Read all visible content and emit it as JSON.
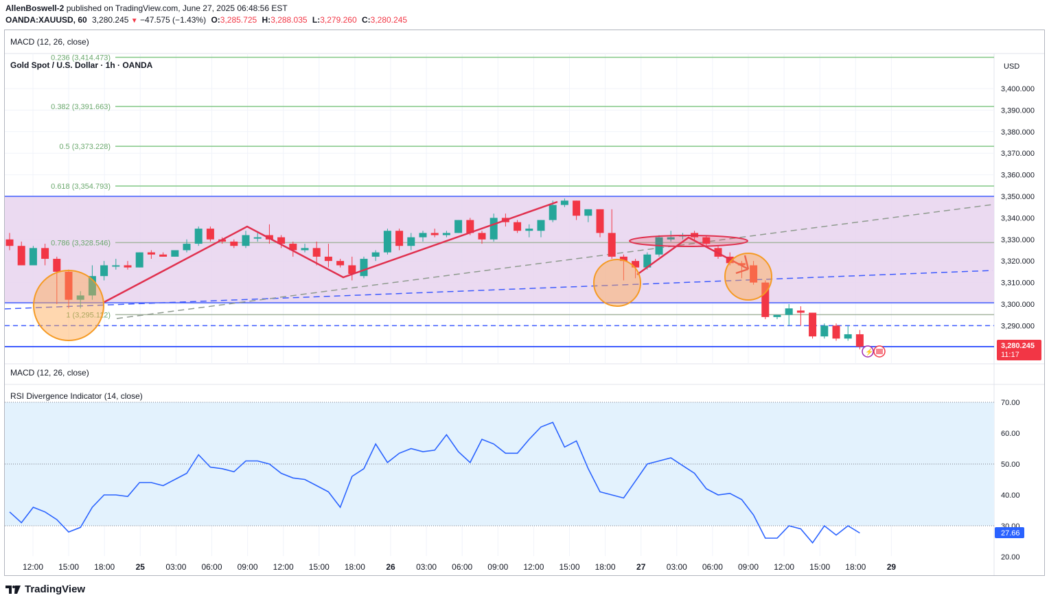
{
  "header": {
    "author": "AllenBoswell-2",
    "published_text": "published on TradingView.com, June 27, 2025 06:48:56 EST",
    "symbol": "OANDA:XAUUSD, 60",
    "price": "3,280.245",
    "change": "−47.575 (−1.43%)",
    "o_label": "O:",
    "o_value": "3,285.725",
    "h_label": "H:",
    "h_value": "3,288.035",
    "l_label": "L:",
    "l_value": "3,279.260",
    "c_label": "C:",
    "c_value": "3,280.245"
  },
  "panes": {
    "top_indicator": "MACD (12, 26, close)",
    "main_title": "Gold Spot / U.S. Dollar · 1h · OANDA",
    "currency": "USD",
    "mid_indicator": "MACD (12, 26, close)",
    "rsi_indicator": "RSI Divergence Indicator (14, close)"
  },
  "price_tag": {
    "value": "3,280.245",
    "countdown": "11:17"
  },
  "rsi_tag": "27.66",
  "footer": {
    "brand": "TradingView"
  },
  "colors": {
    "up": "#26a69a",
    "down": "#f23645",
    "zone": "#e8d3ee",
    "fib": "#81c784",
    "blue": "#3d5afe",
    "pattern": "#e0304e",
    "rsi_line": "#2962ff",
    "rsi_band": "#e3f2fd",
    "circle": "#f59a23"
  },
  "chart_data": {
    "type": "candlestick",
    "instrument": "XAUUSD",
    "timeframe": "1h",
    "x_ticks": [
      "12:00",
      "15:00",
      "18:00",
      "25",
      "03:00",
      "06:00",
      "09:00",
      "12:00",
      "15:00",
      "18:00",
      "26",
      "03:00",
      "06:00",
      "09:00",
      "12:00",
      "15:00",
      "18:00",
      "27",
      "03:00",
      "06:00",
      "09:00",
      "12:00",
      "15:00",
      "18:00",
      "29"
    ],
    "price_ticks": [
      "3,400.000",
      "3,390.000",
      "3,380.000",
      "3,370.000",
      "3,360.000",
      "3,350.000",
      "3,340.000",
      "3,330.000",
      "3,320.000",
      "3,310.000",
      "3,300.000",
      "3,290.000"
    ],
    "fib_levels": [
      {
        "label": "0.236 (3,414.473)",
        "price": 3414.473
      },
      {
        "label": "0.382 (3,391.663)",
        "price": 3391.663
      },
      {
        "label": "0.5 (3,373.228)",
        "price": 3373.228
      },
      {
        "label": "0.618 (3,354.793)",
        "price": 3354.793
      },
      {
        "label": "0.786 (3,328.546)",
        "price": 3328.546
      },
      {
        "label": "1 (3,295.112)",
        "price": 3295.112
      }
    ],
    "horizontal_levels": [
      3350.0,
      3300.6,
      3290.0,
      3280.245
    ],
    "candles": [
      {
        "o": 3330,
        "h": 3333,
        "l": 3325,
        "c": 3327
      },
      {
        "o": 3327,
        "h": 3329,
        "l": 3318,
        "c": 3318
      },
      {
        "o": 3318,
        "h": 3327,
        "l": 3318,
        "c": 3326
      },
      {
        "o": 3326,
        "h": 3328,
        "l": 3318,
        "c": 3321
      },
      {
        "o": 3321,
        "h": 3322,
        "l": 3300,
        "c": 3315
      },
      {
        "o": 3315,
        "h": 3316,
        "l": 3298,
        "c": 3302
      },
      {
        "o": 3302,
        "h": 3306,
        "l": 3298,
        "c": 3304
      },
      {
        "o": 3304,
        "h": 3318,
        "l": 3302,
        "c": 3313
      },
      {
        "o": 3313,
        "h": 3320,
        "l": 3311,
        "c": 3318
      },
      {
        "o": 3318,
        "h": 3321,
        "l": 3316,
        "c": 3318
      },
      {
        "o": 3318,
        "h": 3320,
        "l": 3316,
        "c": 3317
      },
      {
        "o": 3317,
        "h": 3324,
        "l": 3317,
        "c": 3324
      },
      {
        "o": 3324,
        "h": 3325,
        "l": 3321,
        "c": 3323
      },
      {
        "o": 3323,
        "h": 3324,
        "l": 3322,
        "c": 3322
      },
      {
        "o": 3322,
        "h": 3325,
        "l": 3322,
        "c": 3325
      },
      {
        "o": 3325,
        "h": 3330,
        "l": 3324,
        "c": 3328
      },
      {
        "o": 3328,
        "h": 3336,
        "l": 3327,
        "c": 3335
      },
      {
        "o": 3335,
        "h": 3336,
        "l": 3329,
        "c": 3330
      },
      {
        "o": 3330,
        "h": 3331,
        "l": 3328,
        "c": 3329
      },
      {
        "o": 3329,
        "h": 3330,
        "l": 3326,
        "c": 3327
      },
      {
        "o": 3327,
        "h": 3334,
        "l": 3326,
        "c": 3332
      },
      {
        "o": 3331,
        "h": 3333,
        "l": 3329,
        "c": 3331
      },
      {
        "o": 3332,
        "h": 3337,
        "l": 3328,
        "c": 3330
      },
      {
        "o": 3331,
        "h": 3332,
        "l": 3326,
        "c": 3328
      },
      {
        "o": 3328,
        "h": 3329,
        "l": 3322,
        "c": 3325
      },
      {
        "o": 3325,
        "h": 3328,
        "l": 3324,
        "c": 3326
      },
      {
        "o": 3326,
        "h": 3329,
        "l": 3318,
        "c": 3322
      },
      {
        "o": 3322,
        "h": 3328,
        "l": 3317,
        "c": 3320
      },
      {
        "o": 3320,
        "h": 3321,
        "l": 3317,
        "c": 3318
      },
      {
        "o": 3318,
        "h": 3322,
        "l": 3311,
        "c": 3314
      },
      {
        "o": 3313,
        "h": 3322,
        "l": 3312,
        "c": 3321
      },
      {
        "o": 3322,
        "h": 3325,
        "l": 3320,
        "c": 3324
      },
      {
        "o": 3324,
        "h": 3335,
        "l": 3323,
        "c": 3334
      },
      {
        "o": 3334,
        "h": 3335,
        "l": 3325,
        "c": 3327
      },
      {
        "o": 3327,
        "h": 3333,
        "l": 3325,
        "c": 3331
      },
      {
        "o": 3331,
        "h": 3334,
        "l": 3329,
        "c": 3333
      },
      {
        "o": 3333,
        "h": 3335,
        "l": 3331,
        "c": 3332
      },
      {
        "o": 3332,
        "h": 3334,
        "l": 3331,
        "c": 3333
      },
      {
        "o": 3333,
        "h": 3339,
        "l": 3333,
        "c": 3339
      },
      {
        "o": 3339,
        "h": 3340,
        "l": 3332,
        "c": 3333
      },
      {
        "o": 3333,
        "h": 3334,
        "l": 3328,
        "c": 3330
      },
      {
        "o": 3330,
        "h": 3342,
        "l": 3329,
        "c": 3340
      },
      {
        "o": 3340,
        "h": 3342,
        "l": 3336,
        "c": 3338
      },
      {
        "o": 3338,
        "h": 3339,
        "l": 3333,
        "c": 3334
      },
      {
        "o": 3334,
        "h": 3337,
        "l": 3331,
        "c": 3335
      },
      {
        "o": 3334,
        "h": 3339,
        "l": 3331,
        "c": 3339
      },
      {
        "o": 3339,
        "h": 3348,
        "l": 3338,
        "c": 3346
      },
      {
        "o": 3346,
        "h": 3349,
        "l": 3345,
        "c": 3348
      },
      {
        "o": 3348,
        "h": 3348,
        "l": 3339,
        "c": 3341
      },
      {
        "o": 3341,
        "h": 3344,
        "l": 3338,
        "c": 3344
      },
      {
        "o": 3344,
        "h": 3344,
        "l": 3331,
        "c": 3333
      },
      {
        "o": 3333,
        "h": 3344,
        "l": 3321,
        "c": 3322
      },
      {
        "o": 3322,
        "h": 3323,
        "l": 3311,
        "c": 3320
      },
      {
        "o": 3320,
        "h": 3321,
        "l": 3312,
        "c": 3317
      },
      {
        "o": 3317,
        "h": 3324,
        "l": 3316,
        "c": 3323
      },
      {
        "o": 3323,
        "h": 3332,
        "l": 3322,
        "c": 3331
      },
      {
        "o": 3330,
        "h": 3334,
        "l": 3329,
        "c": 3331
      },
      {
        "o": 3332,
        "h": 3333,
        "l": 3330,
        "c": 3332
      },
      {
        "o": 3333,
        "h": 3334,
        "l": 3329,
        "c": 3331
      },
      {
        "o": 3331,
        "h": 3332,
        "l": 3327,
        "c": 3328
      },
      {
        "o": 3326,
        "h": 3327,
        "l": 3321,
        "c": 3322
      },
      {
        "o": 3322,
        "h": 3324,
        "l": 3318,
        "c": 3319
      },
      {
        "o": 3319,
        "h": 3320,
        "l": 3312,
        "c": 3318
      },
      {
        "o": 3318,
        "h": 3320,
        "l": 3309,
        "c": 3310
      },
      {
        "o": 3310,
        "h": 3311,
        "l": 3293,
        "c": 3294
      },
      {
        "o": 3294,
        "h": 3295,
        "l": 3293,
        "c": 3295
      },
      {
        "o": 3295,
        "h": 3300,
        "l": 3290,
        "c": 3298
      },
      {
        "o": 3297,
        "h": 3299,
        "l": 3290,
        "c": 3296
      },
      {
        "o": 3296,
        "h": 3296,
        "l": 3284,
        "c": 3285
      },
      {
        "o": 3285,
        "h": 3291,
        "l": 3284,
        "c": 3290
      },
      {
        "o": 3290,
        "h": 3291,
        "l": 3283,
        "c": 3284
      },
      {
        "o": 3284,
        "h": 3290,
        "l": 3283,
        "c": 3286
      },
      {
        "o": 3286,
        "h": 3288,
        "l": 3279,
        "c": 3280.245
      }
    ],
    "rsi": {
      "ticks": [
        "70.00",
        "60.00",
        "50.00",
        "40.00",
        "30.00",
        "20.00"
      ],
      "ylim": [
        20,
        72
      ],
      "levels": [
        70,
        50,
        30
      ],
      "values": [
        34.5,
        31,
        36,
        34.5,
        32,
        28,
        29.5,
        36,
        40,
        40,
        39.5,
        44,
        44,
        43,
        45,
        47,
        53,
        49,
        48.5,
        47.5,
        51,
        51,
        50,
        47,
        45.5,
        45,
        43,
        41,
        36,
        46,
        48.5,
        56.5,
        50.5,
        53.5,
        55,
        54,
        54.5,
        59.5,
        54,
        50.5,
        58,
        56.5,
        53.5,
        53.5,
        58,
        62,
        63.5,
        55.5,
        57.5,
        48.5,
        41,
        40,
        39,
        44.5,
        50,
        51,
        52,
        49.5,
        47,
        42,
        40,
        40.5,
        38.5,
        33.5,
        26,
        26,
        30,
        29,
        24.5,
        30,
        27,
        30,
        27.66
      ],
      "last": 27.66
    }
  }
}
